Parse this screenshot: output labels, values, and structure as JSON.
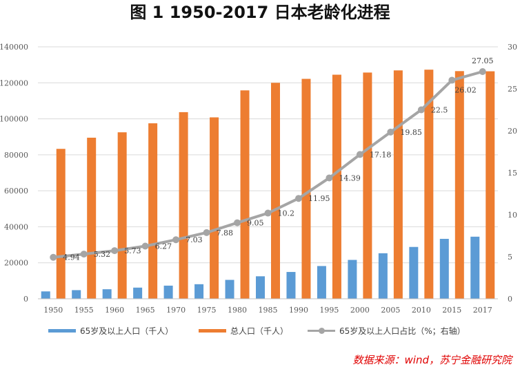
{
  "title": "图 1   1950-2017 日本老龄化进程",
  "source": "数据来源：wind，苏宁金融研究院",
  "colors": {
    "aged": "#5B9BD5",
    "total": "#ED7D31",
    "ratio": "#A5A5A5"
  },
  "legend": {
    "aged": "65岁及以上人口（千人）",
    "total": "总人口（千人）",
    "ratio": "65岁及以上人口占比（%；右轴）"
  },
  "chart_data": {
    "type": "bar",
    "categories": [
      "1950",
      "1955",
      "1960",
      "1965",
      "1970",
      "1975",
      "1980",
      "1985",
      "1990",
      "1995",
      "2000",
      "2005",
      "2010",
      "2015",
      "2017"
    ],
    "series": [
      {
        "name": "65岁及以上人口（千人）",
        "type": "bar",
        "axis": "left",
        "values": [
          4100,
          4800,
          5300,
          6200,
          7300,
          8100,
          10500,
          12500,
          14900,
          18200,
          21600,
          25300,
          28800,
          33300,
          34500
        ]
      },
      {
        "name": "总人口（千人）",
        "type": "bar",
        "axis": "left",
        "values": [
          83300,
          89500,
          92500,
          97500,
          103700,
          100800,
          115800,
          120000,
          122200,
          124500,
          125700,
          126900,
          127300,
          126500,
          126400
        ]
      },
      {
        "name": "65岁及以上人口占比（%；右轴）",
        "type": "line",
        "axis": "right",
        "values": [
          4.94,
          5.32,
          5.73,
          6.27,
          7.03,
          7.88,
          9.05,
          10.2,
          11.95,
          14.39,
          17.18,
          19.85,
          22.5,
          26.02,
          27.05
        ],
        "labels": [
          "4.94",
          "5.32",
          "5.73",
          "6.27",
          "7.03",
          "7.88",
          "9.05",
          "10.2",
          "11.95",
          "14.39",
          "17.18",
          "19.85",
          "22.5",
          "26.02",
          "27.05"
        ]
      }
    ],
    "y_left": {
      "ticks": [
        "0",
        "20000",
        "40000",
        "60000",
        "80000",
        "100000",
        "120000",
        "140000"
      ],
      "range": [
        0,
        140000
      ]
    },
    "y_right": {
      "ticks": [
        "0",
        "5",
        "10",
        "15",
        "20",
        "25",
        "30"
      ],
      "range": [
        0,
        30
      ]
    },
    "grid": true,
    "legend_position": "bottom"
  }
}
